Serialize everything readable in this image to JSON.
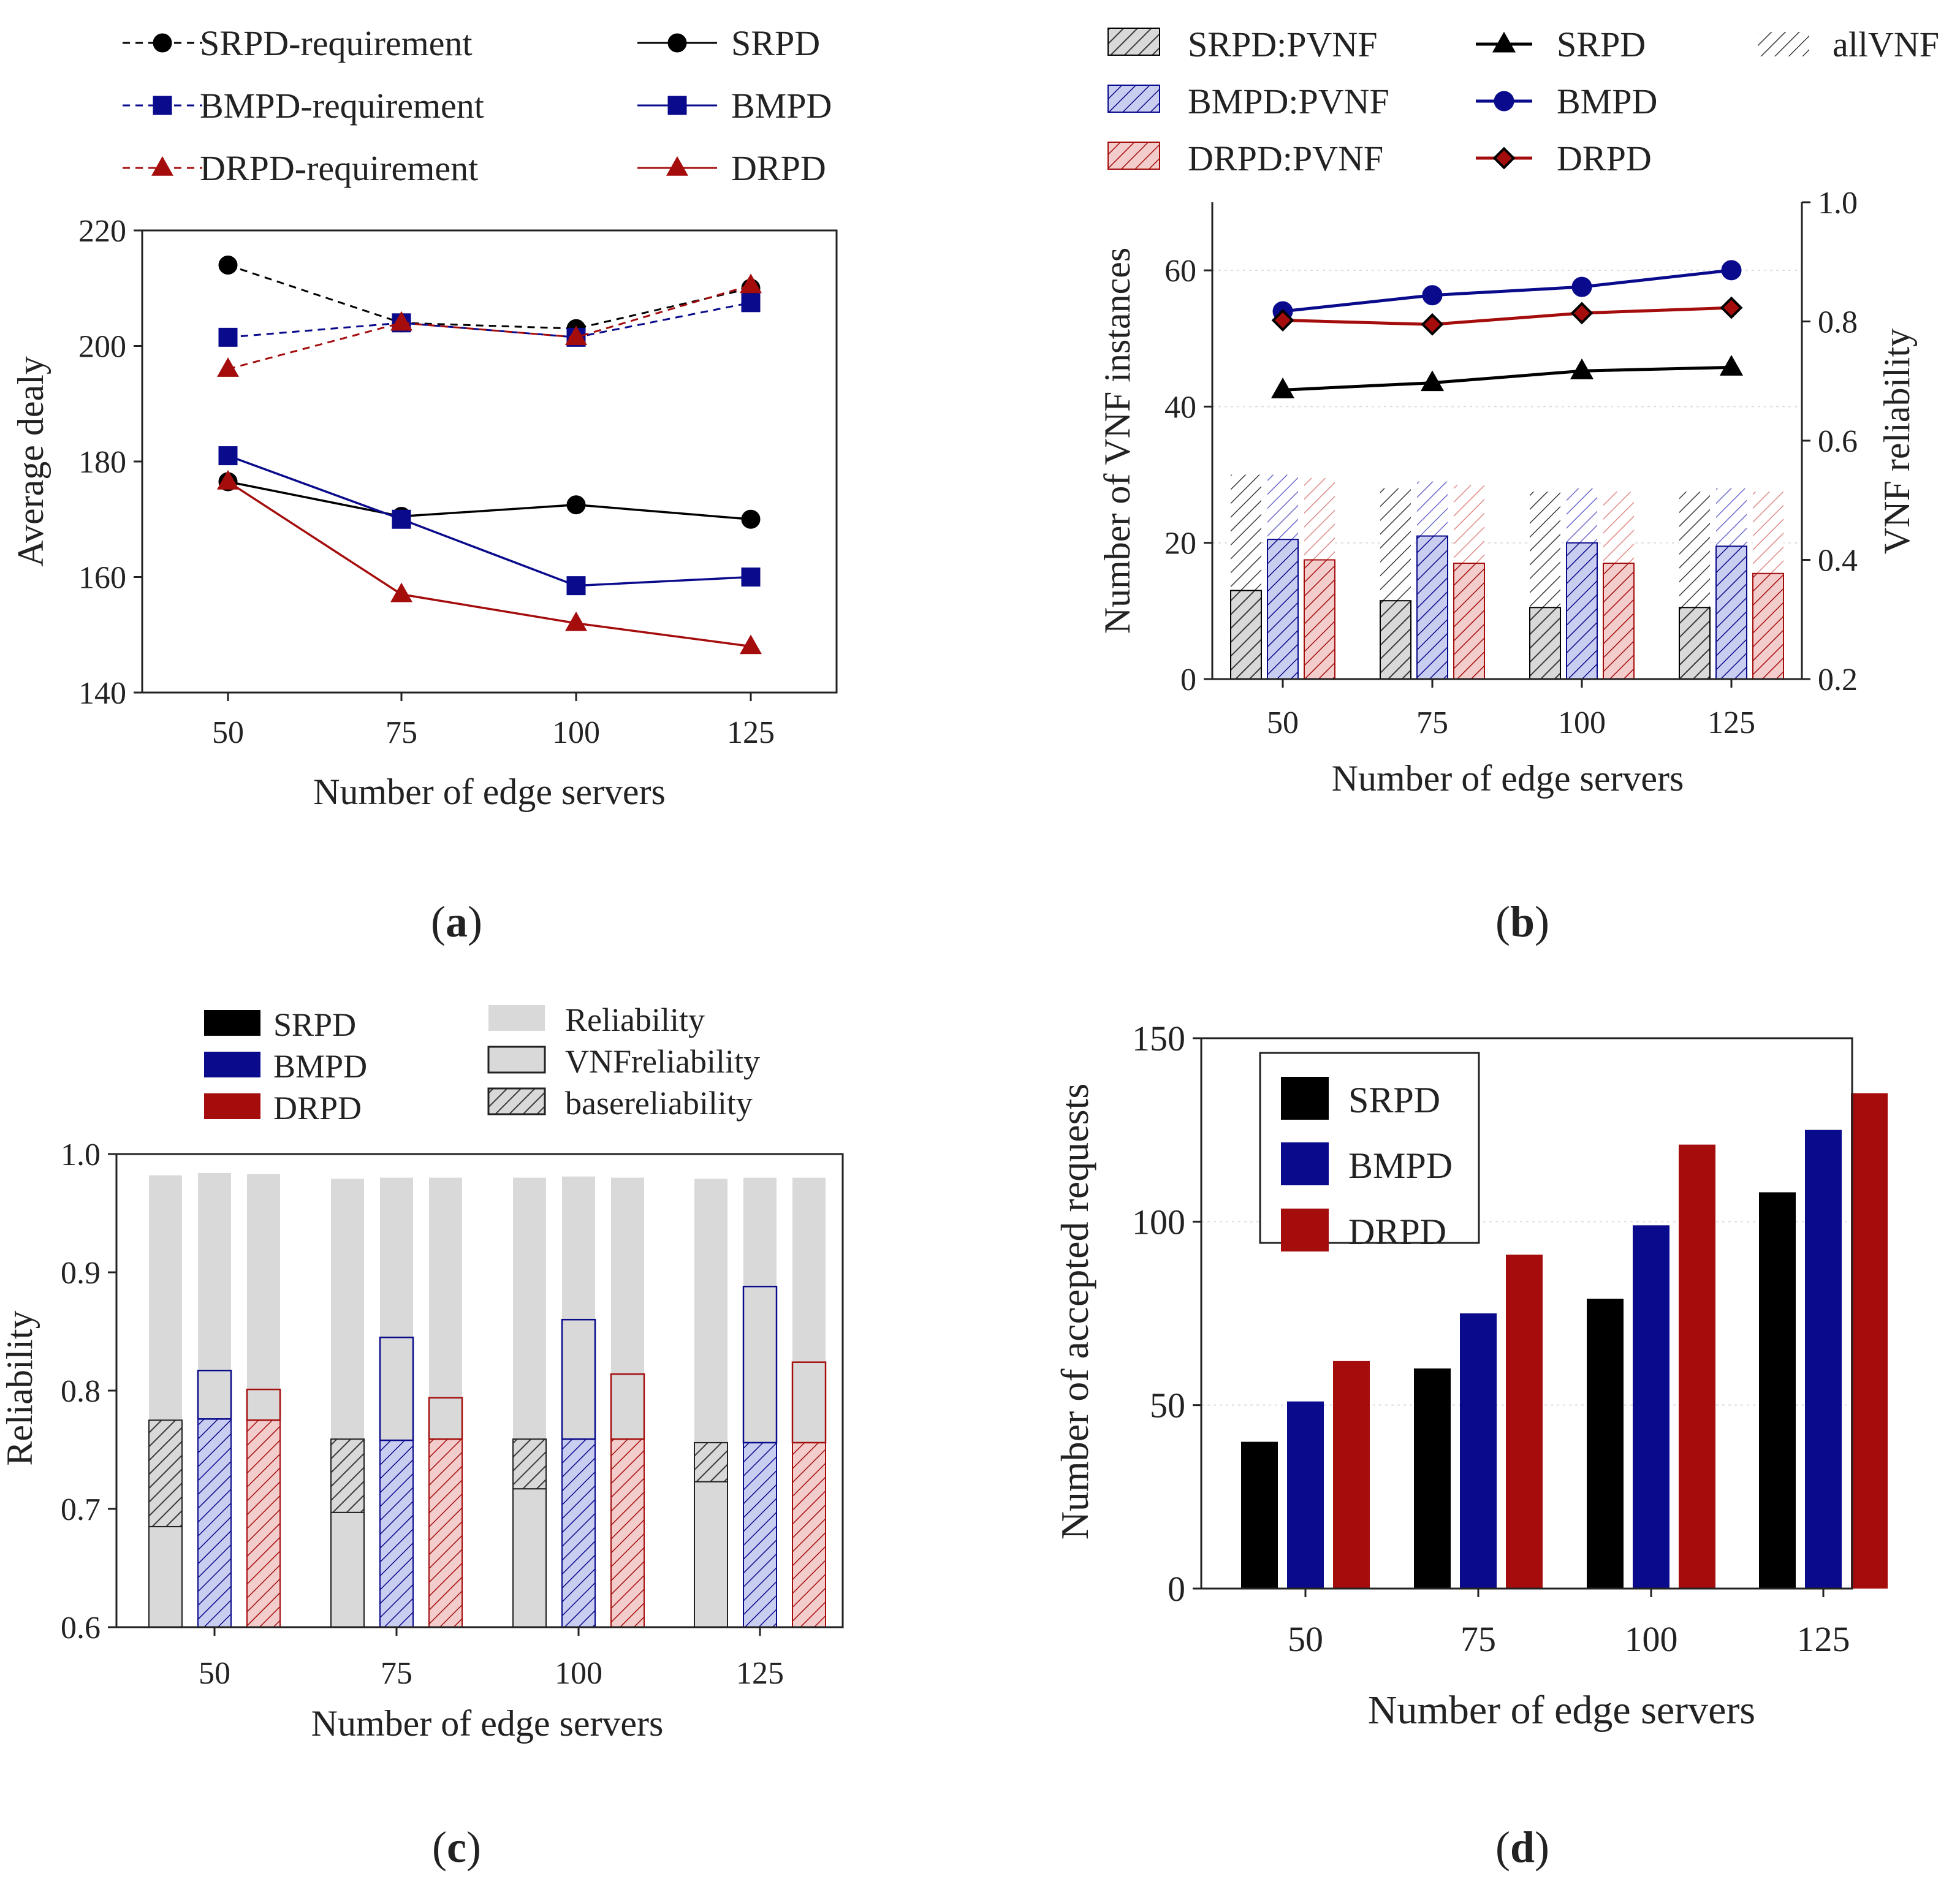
{
  "colors": {
    "srpd": "#000000",
    "bmpd": "#0a0a8c",
    "drpd": "#a50d0d",
    "reliability_gray": "#d9d9d9",
    "hatch_gray": "#555555"
  },
  "chart_data": [
    {
      "id": "a",
      "type": "line",
      "caption": "a",
      "xlabel": "Number of edge servers",
      "ylabel": "Average dealy",
      "categories": [
        "50",
        "75",
        "100",
        "125"
      ],
      "ylim": [
        140,
        220
      ],
      "yticks": [
        "140",
        "160",
        "180",
        "200",
        "220"
      ],
      "series": [
        {
          "name": "SRPD-requirement",
          "color": "#000000",
          "marker": "circle",
          "dashed": true,
          "values": [
            214,
            204,
            203,
            210
          ]
        },
        {
          "name": "BMPD-requirement",
          "color": "#0a0a8c",
          "marker": "square",
          "dashed": true,
          "values": [
            201.5,
            204,
            201.5,
            207.5
          ]
        },
        {
          "name": "DRPD-requirement",
          "color": "#a50d0d",
          "marker": "triangle",
          "dashed": true,
          "values": [
            196,
            204,
            201.5,
            210.5
          ]
        },
        {
          "name": "SRPD",
          "color": "#000000",
          "marker": "circle",
          "dashed": false,
          "values": [
            176.5,
            170.5,
            172.5,
            170
          ]
        },
        {
          "name": "BMPD",
          "color": "#0a0a8c",
          "marker": "square",
          "dashed": false,
          "values": [
            181,
            170,
            158.5,
            160
          ]
        },
        {
          "name": "DRPD",
          "color": "#a50d0d",
          "marker": "triangle",
          "dashed": false,
          "values": [
            176.5,
            157,
            152,
            148
          ]
        }
      ]
    },
    {
      "id": "b",
      "type": "bar+line",
      "caption": "b",
      "xlabel": "Number of edge servers",
      "ylabel": "Number of VNF instances",
      "y2label": "VNF reliability",
      "categories": [
        "50",
        "75",
        "100",
        "125"
      ],
      "ylim": [
        0,
        70
      ],
      "yticks": [
        "0",
        "20",
        "40",
        "60"
      ],
      "y2lim": [
        0.2,
        1.0
      ],
      "y2ticks": [
        "0.2",
        "0.4",
        "0.6",
        "0.8",
        "1.0"
      ],
      "bars": [
        {
          "name": "SRPD:PVNF",
          "color": "#000000",
          "pvnf": [
            13,
            11.5,
            10.5,
            10.5
          ],
          "allvnf": [
            30,
            28,
            27.5,
            27.5
          ]
        },
        {
          "name": "BMPD:PVNF",
          "color": "#0a0a8c",
          "pvnf": [
            20.5,
            21,
            20,
            19.5
          ],
          "allvnf": [
            30,
            29,
            28,
            28
          ]
        },
        {
          "name": "DRPD:PVNF",
          "color": "#a50d0d",
          "pvnf": [
            17.5,
            17,
            17,
            15.5
          ],
          "allvnf": [
            29.5,
            28.5,
            27.5,
            27.5
          ]
        }
      ],
      "allvnf_label": "allVNF",
      "lines": [
        {
          "name": "SRPD",
          "color": "#000000",
          "marker": "triangle",
          "values": [
            0.685,
            0.697,
            0.717,
            0.723
          ]
        },
        {
          "name": "BMPD",
          "color": "#0a0a8c",
          "marker": "circle",
          "values": [
            0.817,
            0.844,
            0.858,
            0.886
          ]
        },
        {
          "name": "DRPD",
          "color": "#a50d0d",
          "marker": "diamond",
          "values": [
            0.802,
            0.795,
            0.814,
            0.823
          ]
        }
      ]
    },
    {
      "id": "c",
      "type": "bar",
      "caption": "c",
      "xlabel": "Number of edge servers",
      "ylabel": "Reliability",
      "categories": [
        "50",
        "75",
        "100",
        "125"
      ],
      "ylim": [
        0.6,
        1.0
      ],
      "yticks": [
        "0.6",
        "0.7",
        "0.8",
        "0.9",
        "1.0"
      ],
      "legend": {
        "series": [
          "SRPD",
          "BMPD",
          "DRPD"
        ],
        "layers": [
          "Reliability",
          "VNFreliability",
          "basereliability"
        ]
      },
      "groups": [
        {
          "name": "SRPD",
          "color": "#000000",
          "reliability": [
            0.982,
            0.979,
            0.98,
            0.979
          ],
          "vnf_reliability": [
            0.685,
            0.697,
            0.717,
            0.723
          ],
          "base_reliability": [
            0.775,
            0.759,
            0.759,
            0.756
          ]
        },
        {
          "name": "BMPD",
          "color": "#0a0a8c",
          "reliability": [
            0.984,
            0.98,
            0.981,
            0.98
          ],
          "vnf_reliability": [
            0.817,
            0.845,
            0.86,
            0.888
          ],
          "base_reliability": [
            0.776,
            0.758,
            0.759,
            0.756
          ]
        },
        {
          "name": "DRPD",
          "color": "#a50d0d",
          "reliability": [
            0.983,
            0.98,
            0.98,
            0.98
          ],
          "vnf_reliability": [
            0.801,
            0.794,
            0.814,
            0.824
          ],
          "base_reliability": [
            0.775,
            0.759,
            0.759,
            0.756
          ]
        }
      ]
    },
    {
      "id": "d",
      "type": "bar",
      "caption": "d",
      "xlabel": "Number of edge servers",
      "ylabel": "Number of accepted requests",
      "categories": [
        "50",
        "75",
        "100",
        "125"
      ],
      "ylim": [
        0,
        150
      ],
      "yticks": [
        "0",
        "50",
        "100",
        "150"
      ],
      "series": [
        {
          "name": "SRPD",
          "color": "#000000",
          "values": [
            40,
            60,
            79,
            108
          ]
        },
        {
          "name": "BMPD",
          "color": "#0a0a8c",
          "values": [
            51,
            75,
            99,
            125
          ]
        },
        {
          "name": "DRPD",
          "color": "#a50d0d",
          "values": [
            62,
            91,
            121,
            135
          ]
        }
      ]
    }
  ]
}
